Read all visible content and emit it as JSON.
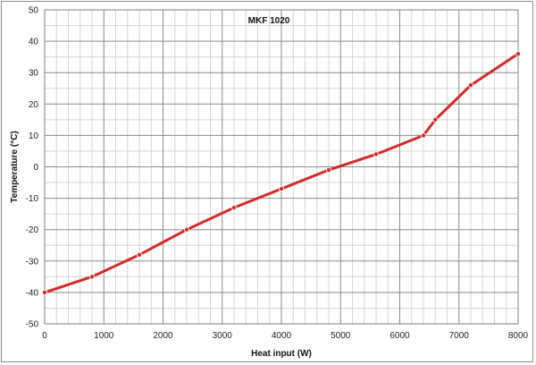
{
  "chart_data": {
    "type": "line",
    "title": "MKF 1020",
    "xlabel": "Heat input (W)",
    "ylabel": "Temperature (°C)",
    "xlim": [
      0,
      8000
    ],
    "ylim": [
      -50,
      50
    ],
    "x_ticks": [
      0,
      1000,
      2000,
      3000,
      4000,
      5000,
      6000,
      7000,
      8000
    ],
    "y_ticks": [
      -50,
      -40,
      -30,
      -20,
      -10,
      0,
      10,
      20,
      30,
      40,
      50
    ],
    "x_minor_step": 200,
    "y_minor_step": 5,
    "grid": true,
    "legend": "none",
    "series": [
      {
        "color": "#d32a2a",
        "x": [
          0,
          800,
          1600,
          2400,
          3200,
          4000,
          4800,
          5600,
          6400,
          6600,
          7200,
          8000
        ],
        "y": [
          -40,
          -35,
          -28,
          -20,
          -13,
          -7,
          -1,
          4,
          10,
          15,
          26,
          36
        ]
      }
    ]
  }
}
